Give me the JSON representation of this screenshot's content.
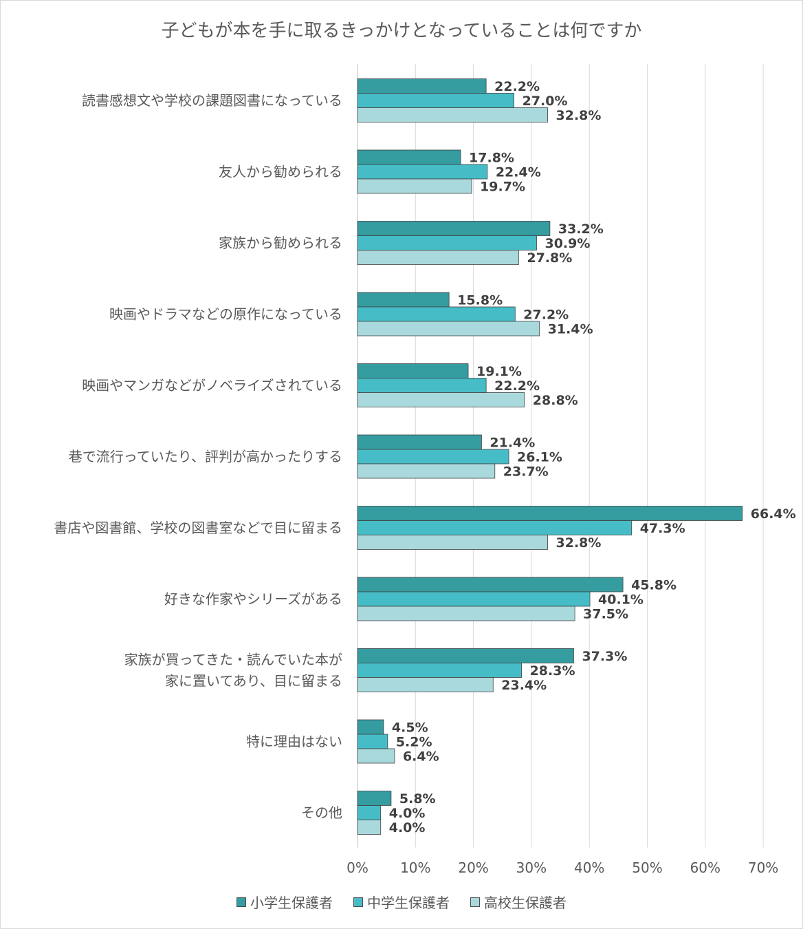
{
  "chart_data": {
    "type": "bar",
    "orientation": "horizontal",
    "title": "子どもが本を手に取るきっかけとなっていることは何ですか",
    "categories": [
      [
        "読書感想文や学校の課題図書になっている"
      ],
      [
        "友人から勧められる"
      ],
      [
        "家族から勧められる"
      ],
      [
        "映画やドラマなどの原作になっている"
      ],
      [
        "映画やマンガなどがノベライズされている"
      ],
      [
        "巷で流行っていたり、評判が高かったりする"
      ],
      [
        "書店や図書館、学校の図書室などで目に留まる"
      ],
      [
        "好きな作家やシリーズがある"
      ],
      [
        "家族が買ってきた・読んでいた本が",
        "家に置いてあり、目に留まる"
      ],
      [
        "特に理由はない"
      ],
      [
        "その他"
      ]
    ],
    "series": [
      {
        "name": "小学生保護者",
        "color": "#359ca0",
        "values": [
          22.2,
          17.8,
          33.2,
          15.8,
          19.1,
          21.4,
          66.4,
          45.8,
          37.3,
          4.5,
          5.8
        ]
      },
      {
        "name": "中学生保護者",
        "color": "#46bdc6",
        "values": [
          27.0,
          22.4,
          30.9,
          27.2,
          22.2,
          26.1,
          47.3,
          40.1,
          28.3,
          5.2,
          4.0
        ]
      },
      {
        "name": "高校生保護者",
        "color": "#a9d9dc",
        "values": [
          32.8,
          19.7,
          27.8,
          31.4,
          28.8,
          23.7,
          32.8,
          37.5,
          23.4,
          6.4,
          4.0
        ]
      }
    ],
    "value_suffix": "%",
    "xlim": [
      0,
      70
    ],
    "xticks": [
      0,
      10,
      20,
      30,
      40,
      50,
      60,
      70
    ],
    "xtick_labels": [
      "0%",
      "10%",
      "20%",
      "30%",
      "40%",
      "50%",
      "60%",
      "70%"
    ],
    "grid": "vertical",
    "legend_position": "bottom"
  }
}
